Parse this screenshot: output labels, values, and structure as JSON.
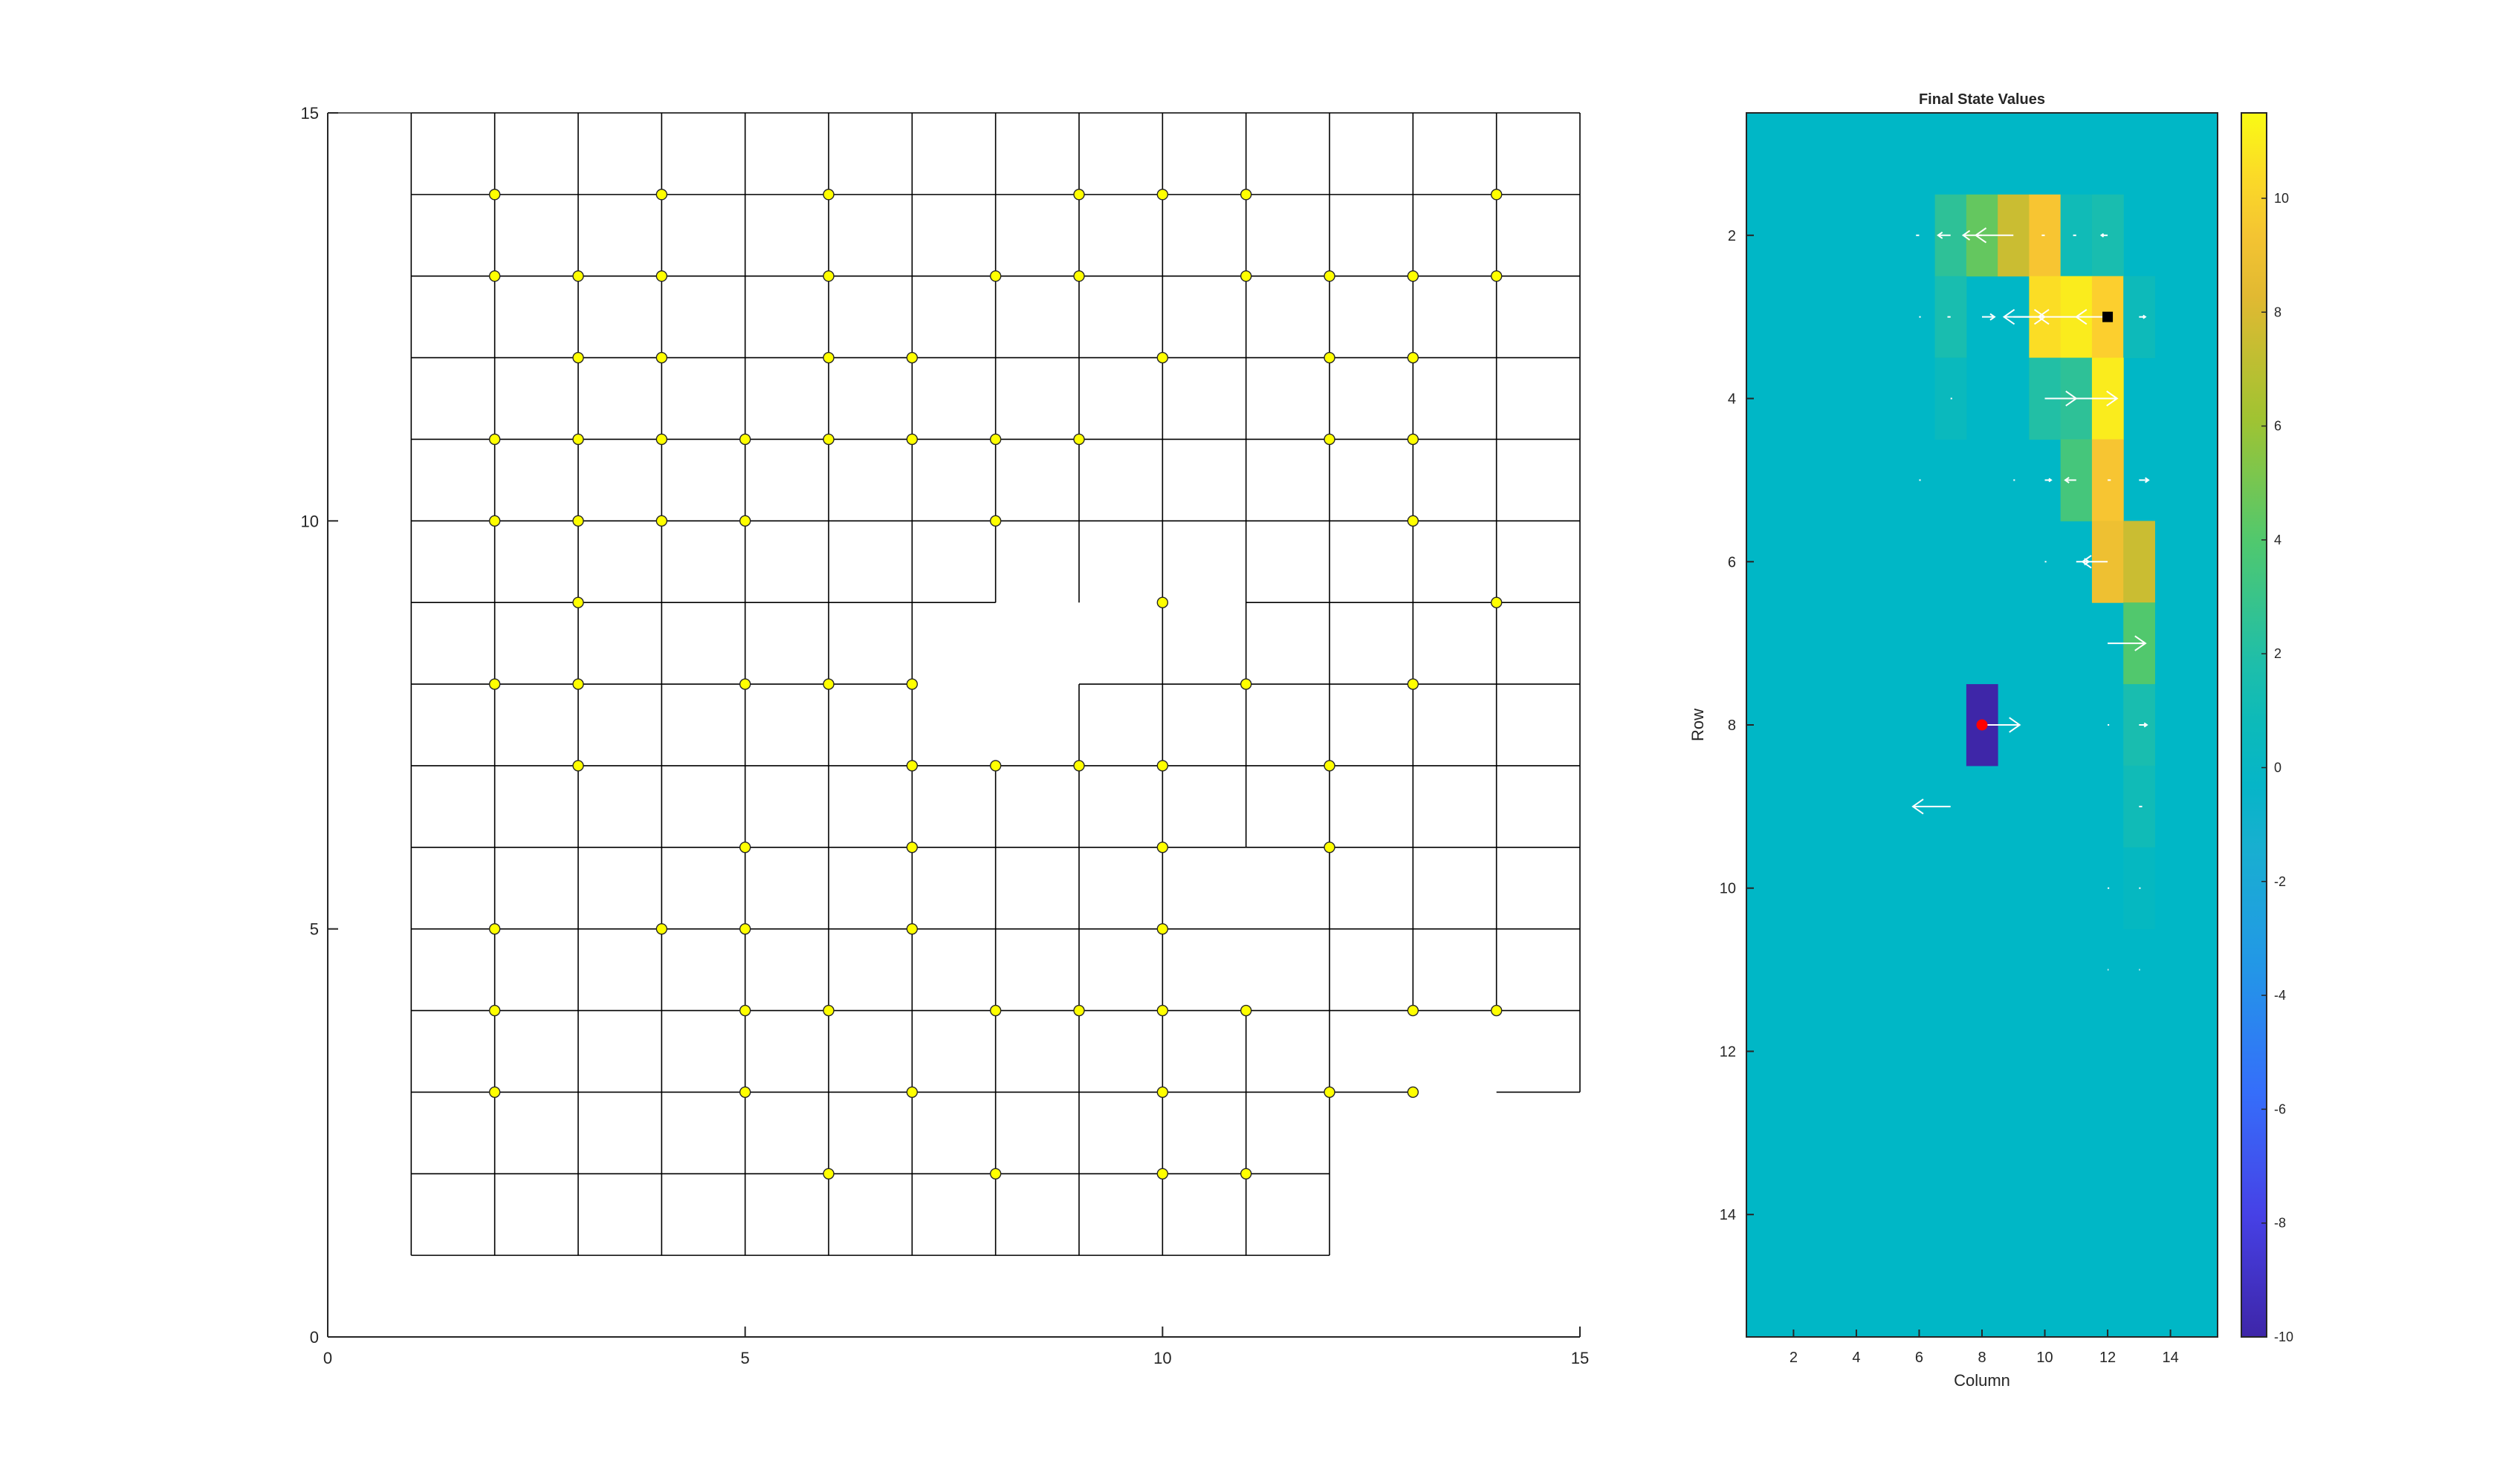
{
  "chart_data": [
    {
      "type": "scatter",
      "title": "",
      "xlabel": "",
      "ylabel": "",
      "xlim": [
        0,
        15
      ],
      "ylim": [
        0,
        15
      ],
      "xticks": [
        "0",
        "5",
        "10",
        "15"
      ],
      "yticks": [
        "0",
        "5",
        "10",
        "15"
      ],
      "marker_color": "#ffff00",
      "grid_color": "#000000",
      "h_segments": [
        [
          1,
          15,
          14
        ],
        [
          1,
          15,
          13
        ],
        [
          1,
          15,
          12
        ],
        [
          1,
          15,
          11
        ],
        [
          1,
          15,
          10
        ],
        [
          1,
          8,
          9
        ],
        [
          11,
          15,
          9
        ],
        [
          1,
          7,
          8
        ],
        [
          9,
          15,
          8
        ],
        [
          1,
          15,
          7
        ],
        [
          1,
          11,
          6
        ],
        [
          11,
          15,
          6
        ],
        [
          1,
          15,
          5
        ],
        [
          1,
          12,
          4
        ],
        [
          12,
          15,
          4
        ],
        [
          1,
          13,
          3
        ],
        [
          14,
          15,
          3
        ],
        [
          1,
          12,
          2
        ]
      ],
      "v_segments": [
        [
          2,
          1,
          15
        ],
        [
          3,
          1,
          15
        ],
        [
          4,
          1,
          15
        ],
        [
          5,
          1,
          15
        ],
        [
          6,
          1,
          15
        ],
        [
          7,
          1,
          15
        ],
        [
          8,
          1,
          7
        ],
        [
          8,
          9,
          15
        ],
        [
          9,
          1,
          8
        ],
        [
          9,
          9,
          15
        ],
        [
          10,
          1,
          15
        ],
        [
          11,
          1,
          4
        ],
        [
          11,
          6,
          15
        ],
        [
          12,
          1,
          15
        ],
        [
          13,
          4,
          15
        ],
        [
          14,
          4,
          15
        ]
      ],
      "outer_box": [
        [
          1,
          15,
          15
        ],
        [
          15,
          15,
          3
        ],
        [
          1,
          1,
          15
        ],
        [
          1,
          1,
          12
        ]
      ],
      "points": [
        [
          2,
          14
        ],
        [
          4,
          14
        ],
        [
          6,
          14
        ],
        [
          9,
          14
        ],
        [
          10,
          14
        ],
        [
          11,
          14
        ],
        [
          14,
          14
        ],
        [
          2,
          13
        ],
        [
          3,
          13
        ],
        [
          4,
          13
        ],
        [
          6,
          13
        ],
        [
          8,
          13
        ],
        [
          9,
          13
        ],
        [
          11,
          13
        ],
        [
          12,
          13
        ],
        [
          13,
          13
        ],
        [
          14,
          13
        ],
        [
          3,
          12
        ],
        [
          4,
          12
        ],
        [
          6,
          12
        ],
        [
          7,
          12
        ],
        [
          10,
          12
        ],
        [
          12,
          12
        ],
        [
          13,
          12
        ],
        [
          2,
          11
        ],
        [
          3,
          11
        ],
        [
          4,
          11
        ],
        [
          5,
          11
        ],
        [
          6,
          11
        ],
        [
          7,
          11
        ],
        [
          8,
          11
        ],
        [
          9,
          11
        ],
        [
          12,
          11
        ],
        [
          13,
          11
        ],
        [
          2,
          10
        ],
        [
          3,
          10
        ],
        [
          4,
          10
        ],
        [
          5,
          10
        ],
        [
          8,
          10
        ],
        [
          13,
          10
        ],
        [
          3,
          9
        ],
        [
          10,
          9
        ],
        [
          14,
          9
        ],
        [
          2,
          8
        ],
        [
          3,
          8
        ],
        [
          5,
          8
        ],
        [
          6,
          8
        ],
        [
          7,
          8
        ],
        [
          11,
          8
        ],
        [
          13,
          8
        ],
        [
          3,
          7
        ],
        [
          7,
          7
        ],
        [
          8,
          7
        ],
        [
          9,
          7
        ],
        [
          10,
          7
        ],
        [
          12,
          7
        ],
        [
          5,
          6
        ],
        [
          7,
          6
        ],
        [
          10,
          6
        ],
        [
          12,
          6
        ],
        [
          2,
          5
        ],
        [
          4,
          5
        ],
        [
          5,
          5
        ],
        [
          7,
          5
        ],
        [
          10,
          5
        ],
        [
          2,
          4
        ],
        [
          5,
          4
        ],
        [
          6,
          4
        ],
        [
          8,
          4
        ],
        [
          9,
          4
        ],
        [
          10,
          4
        ],
        [
          11,
          4
        ],
        [
          13,
          4
        ],
        [
          14,
          4
        ],
        [
          2,
          3
        ],
        [
          5,
          3
        ],
        [
          7,
          3
        ],
        [
          10,
          3
        ],
        [
          12,
          3
        ],
        [
          13,
          3
        ],
        [
          6,
          2
        ],
        [
          8,
          2
        ],
        [
          10,
          2
        ],
        [
          11,
          2
        ]
      ]
    },
    {
      "type": "heatmap",
      "title": "Final State Values",
      "xlabel": "Column",
      "ylabel": "Row",
      "xlim": [
        0.5,
        15.5
      ],
      "ylim": [
        0.5,
        15.5
      ],
      "xticks": [
        2,
        4,
        6,
        8,
        10,
        12,
        14
      ],
      "yticks": [
        2,
        4,
        6,
        8,
        10,
        12,
        14
      ],
      "colorbar": {
        "limits": [
          -10,
          11.5
        ],
        "ticks": [
          10,
          8,
          6,
          4,
          2,
          0,
          -2,
          -4,
          -6,
          -8,
          -10
        ]
      },
      "background_value": 0,
      "cells": [
        [
          2,
          7,
          2.5
        ],
        [
          2,
          8,
          4.5
        ],
        [
          2,
          9,
          7.5
        ],
        [
          2,
          10,
          9.5
        ],
        [
          2,
          11,
          1.0
        ],
        [
          2,
          12,
          1.5
        ],
        [
          3,
          7,
          1.5
        ],
        [
          3,
          10,
          10.5
        ],
        [
          3,
          11,
          11.0
        ],
        [
          3,
          12,
          10.0
        ],
        [
          3,
          13,
          0.8
        ],
        [
          4,
          7,
          0.6
        ],
        [
          4,
          10,
          2.0
        ],
        [
          4,
          11,
          2.5
        ],
        [
          4,
          12,
          11.0
        ],
        [
          5,
          11,
          3.5
        ],
        [
          5,
          12,
          9.5
        ],
        [
          6,
          12,
          9.0
        ],
        [
          6,
          13,
          7.5
        ],
        [
          7,
          13,
          4.0
        ],
        [
          8,
          8,
          -10
        ],
        [
          8,
          13,
          1.5
        ],
        [
          9,
          13,
          1.0
        ],
        [
          10,
          13,
          0.3
        ]
      ],
      "arrows": [
        [
          2,
          6,
          -0.1
        ],
        [
          2,
          7,
          -0.4
        ],
        [
          2,
          8,
          -0.6
        ],
        [
          2,
          9,
          -1.2
        ],
        [
          2,
          10,
          -0.1
        ],
        [
          2,
          11,
          -0.1
        ],
        [
          2,
          12,
          -0.2
        ],
        [
          3,
          6,
          0.05
        ],
        [
          3,
          7,
          -0.1
        ],
        [
          3,
          8,
          0.4
        ],
        [
          3,
          9,
          1.0
        ],
        [
          3,
          10,
          -1.3
        ],
        [
          3,
          11,
          -1.2
        ],
        [
          3,
          12,
          -1.0
        ],
        [
          3,
          13,
          0.2
        ],
        [
          4,
          7,
          0.05
        ],
        [
          4,
          10,
          1.0
        ],
        [
          4,
          11,
          1.3
        ],
        [
          5,
          6,
          0.05
        ],
        [
          5,
          9,
          0.05
        ],
        [
          5,
          10,
          0.2
        ],
        [
          5,
          11,
          -0.35
        ],
        [
          5,
          12,
          0.1
        ],
        [
          5,
          13,
          0.3
        ],
        [
          6,
          10,
          0.05
        ],
        [
          6,
          11,
          0.4
        ],
        [
          6,
          12,
          -0.8
        ],
        [
          7,
          12,
          1.2
        ],
        [
          7,
          13,
          0.2
        ],
        [
          8,
          8,
          1.2
        ],
        [
          8,
          12,
          0.05
        ],
        [
          8,
          13,
          0.25
        ],
        [
          9,
          7,
          -1.2
        ],
        [
          9,
          13,
          0.1
        ],
        [
          10,
          12,
          0.05
        ],
        [
          10,
          13,
          0.05
        ],
        [
          11,
          12,
          0.03
        ],
        [
          11,
          13,
          0.03
        ]
      ],
      "start_cell": [
        8,
        8
      ],
      "start_marker_color": "#ff0000",
      "goal_cell": [
        3,
        12
      ],
      "goal_marker_color": "#000000"
    }
  ]
}
